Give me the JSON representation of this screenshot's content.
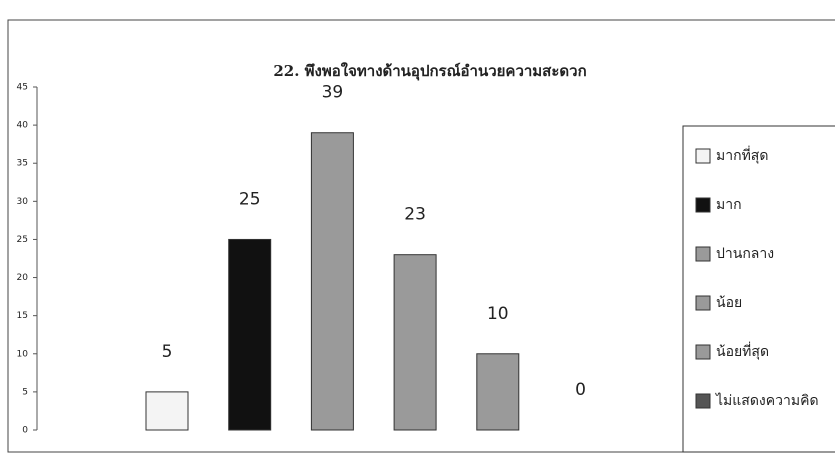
{
  "chart_data": {
    "type": "bar",
    "title": "22. พึงพอใจทางด้านอุปกรณ์อำนวยความสะดวก",
    "categories": [
      "มากที่สุด",
      "มาก",
      "ปานกลาง",
      "น้อย",
      "น้อยที่สุด",
      "ไม่แสดงความคิด"
    ],
    "values": [
      5,
      25,
      39,
      23,
      10,
      0
    ],
    "colors": [
      "#f4f4f4",
      "#111111",
      "#9a9a9a",
      "#9a9a9a",
      "#9a9a9a",
      "#555555"
    ],
    "ylim": [
      0,
      45
    ],
    "yticks": [
      0,
      5,
      10,
      15,
      20,
      25,
      30,
      35,
      40,
      45
    ],
    "grid": false,
    "legend": "right"
  }
}
